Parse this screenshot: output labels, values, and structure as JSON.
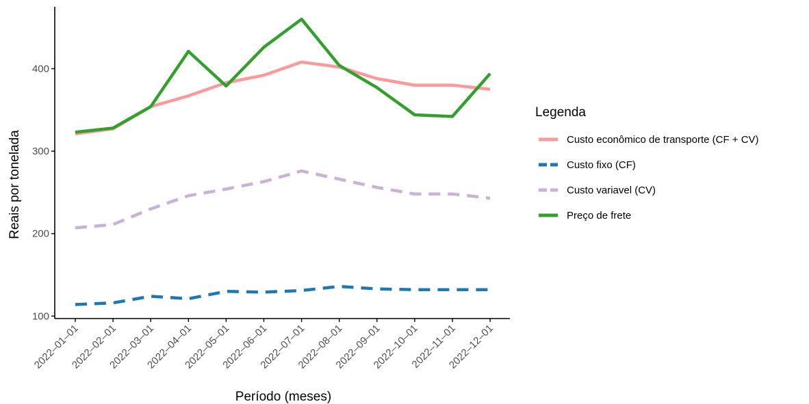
{
  "chart_data": {
    "type": "line",
    "xlabel": "Período (meses)",
    "ylabel": "Reais por tonelada",
    "ylim": [
      97,
      475
    ],
    "yticks": [
      100,
      200,
      300,
      400
    ],
    "categories": [
      "2022-01-01",
      "2022-02-01",
      "2022-03-01",
      "2022-04-01",
      "2022-05-01",
      "2022-06-01",
      "2022-07-01",
      "2022-08-01",
      "2022-09-01",
      "2022-10-01",
      "2022-11-01",
      "2022-12-01"
    ],
    "legend": {
      "title": "Legenda",
      "position": "right"
    },
    "grid": false,
    "series": [
      {
        "name": "Custo econômico de transporte (CF + CV)",
        "color": "#FB9A99",
        "dash": "solid",
        "values": [
          321,
          327,
          354,
          367,
          383,
          392,
          408,
          402,
          388,
          380,
          380,
          375
        ]
      },
      {
        "name": "Custo fixo (CF)",
        "color": "#1F78B4",
        "dash": "dashed",
        "values": [
          114,
          116,
          124,
          121,
          130,
          129,
          131,
          136,
          133,
          132,
          132,
          132
        ]
      },
      {
        "name": "Custo variavel (CV)",
        "color": "#CAB2D6",
        "dash": "dashed",
        "values": [
          207,
          211,
          230,
          246,
          254,
          263,
          276,
          266,
          256,
          248,
          248,
          243
        ]
      },
      {
        "name": "Preço de frete",
        "color": "#33A02C",
        "dash": "solid",
        "values": [
          323,
          328,
          354,
          421,
          379,
          426,
          460,
          404,
          377,
          344,
          342,
          394
        ]
      }
    ]
  }
}
